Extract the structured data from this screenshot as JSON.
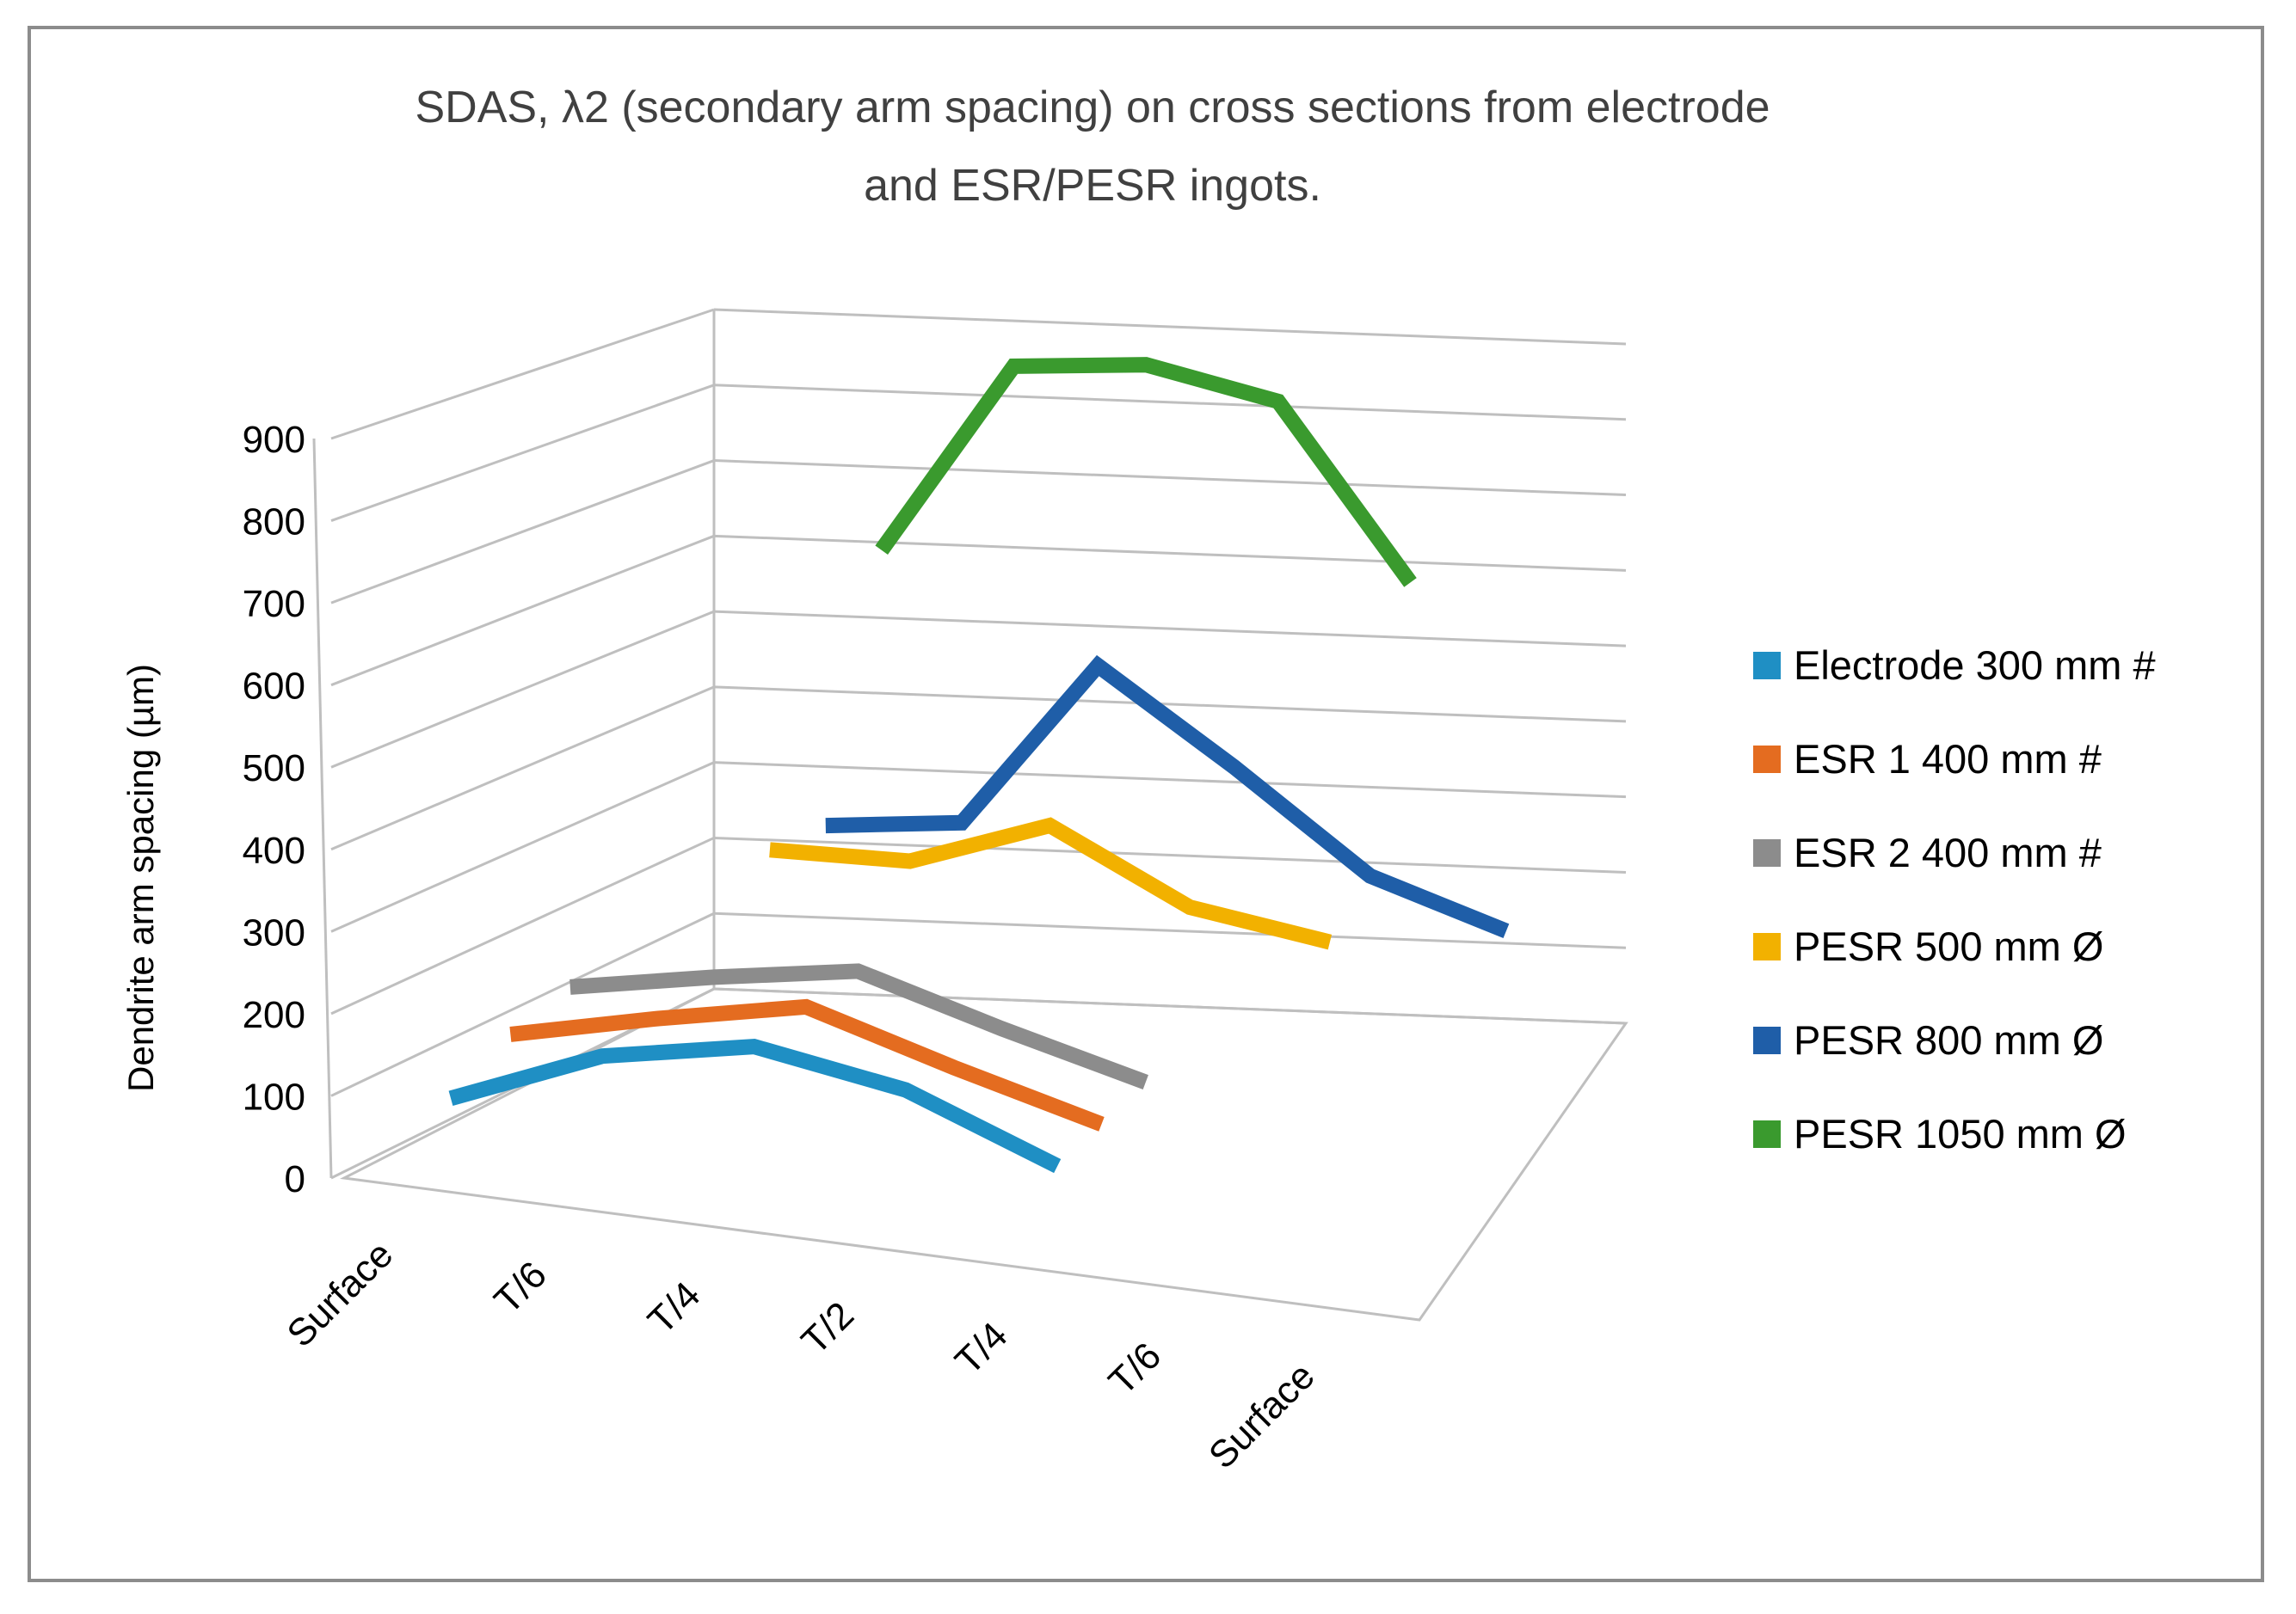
{
  "chart_data": {
    "type": "line",
    "variant": "3d-line",
    "title": "SDAS, λ2 (secondary arm spacing) on cross sections from electrode and ESR/PESR ingots.",
    "title_lines": [
      "SDAS, λ2 (secondary arm spacing) on cross sections from electrode",
      "and ESR/PESR ingots."
    ],
    "xlabel": "",
    "ylabel": "Dendrite arm spacing (µm)",
    "ylim": [
      0,
      900
    ],
    "yticks": [
      0,
      100,
      200,
      300,
      400,
      500,
      600,
      700,
      800,
      900
    ],
    "grid": true,
    "legend_position": "right",
    "categories": [
      "Surface",
      "T/6",
      "T/4",
      "T/2",
      "T/4",
      "T/6",
      "Surface"
    ],
    "series": [
      {
        "name": "Electrode 300 mm #",
        "color": "#1F8FC4",
        "values": [
          90,
          165,
          200,
          170,
          100,
          null,
          null
        ]
      },
      {
        "name": "ESR 1 400 mm #",
        "color": "#E46C20",
        "values": [
          130,
          170,
          205,
          150,
          100,
          null,
          null
        ]
      },
      {
        "name": "ESR 2 400 mm #",
        "color": "#8C8C8C",
        "values": [
          150,
          180,
          205,
          150,
          100,
          null,
          null
        ]
      },
      {
        "name": "PESR 500 mm Ø",
        "color": "#F2B100",
        "values": [
          null,
          300,
          300,
          360,
          270,
          240,
          null
        ]
      },
      {
        "name": "PESR 800 mm Ø",
        "color": "#1F5EA8",
        "values": [
          null,
          290,
          305,
          520,
          400,
          270,
          210
        ]
      },
      {
        "name": "PESR 1050 mm Ø",
        "color": "#3A9A2E",
        "values": [
          null,
          610,
          860,
          870,
          830,
          600,
          null
        ]
      }
    ]
  }
}
